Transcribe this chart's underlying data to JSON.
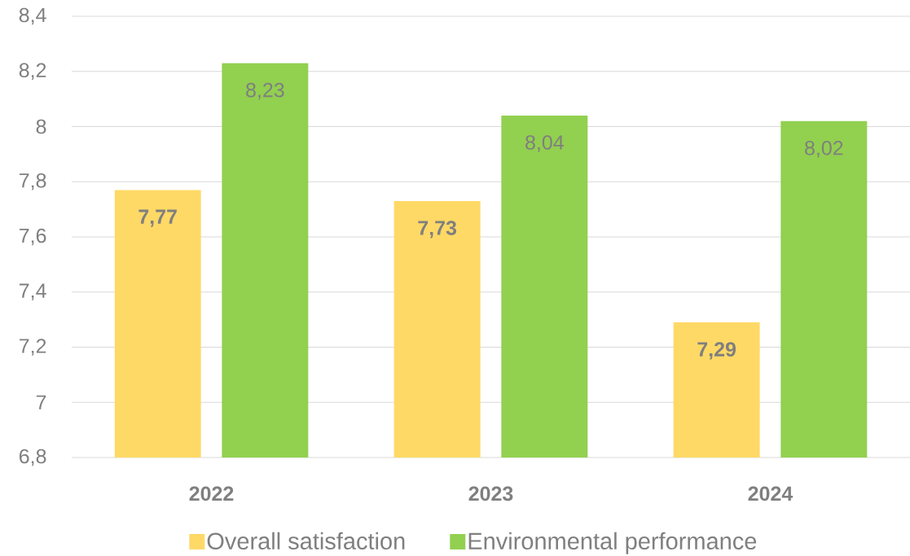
{
  "chart_data": {
    "type": "bar",
    "categories": [
      "2022",
      "2023",
      "2024"
    ],
    "series": [
      {
        "name": "Overall satisfaction",
        "color": "#ffd966",
        "values": [
          7.77,
          7.73,
          7.29
        ],
        "value_labels": [
          "7,77",
          "7,73",
          "7,29"
        ]
      },
      {
        "name": "Environmental performance",
        "color": "#92d050",
        "values": [
          8.23,
          8.04,
          8.02
        ],
        "value_labels": [
          "8,23",
          "8,04",
          "8,02"
        ]
      }
    ],
    "ylim": [
      6.8,
      8.4
    ],
    "yticks": [
      {
        "value": 6.8,
        "label": "6,8"
      },
      7,
      {
        "value": 7.2,
        "label": "7,2"
      },
      {
        "value": 7.4,
        "label": "7,4"
      },
      {
        "value": 7.6,
        "label": "7,6"
      },
      {
        "value": 7.8,
        "label": "7,8"
      },
      8,
      {
        "value": 8.2,
        "label": "8,2"
      },
      {
        "value": 8.4,
        "label": "8,4"
      }
    ],
    "grid": "y",
    "legend": "bottom"
  }
}
